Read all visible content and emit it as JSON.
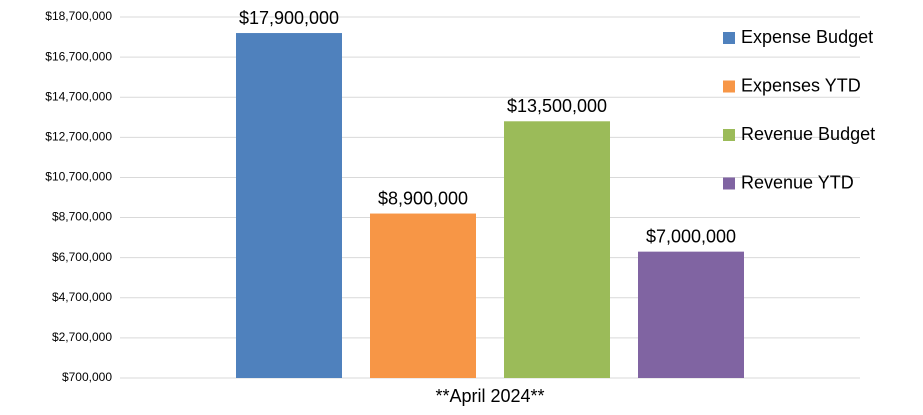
{
  "chart_data": {
    "type": "bar",
    "categories": [
      "**April 2024**"
    ],
    "series": [
      {
        "name": "Expense Budget",
        "color": "#4f81bd",
        "values": [
          17900000
        ],
        "value_labels": [
          "$17,900,000"
        ]
      },
      {
        "name": "Expenses YTD",
        "color": "#f79646",
        "values": [
          8900000
        ],
        "value_labels": [
          "$8,900,000"
        ]
      },
      {
        "name": "Revenue Budget",
        "color": "#9bbb59",
        "values": [
          13500000
        ],
        "value_labels": [
          "$13,500,000"
        ]
      },
      {
        "name": "Revenue YTD",
        "color": "#8064a2",
        "values": [
          7000000
        ],
        "value_labels": [
          "$7,000,000"
        ]
      }
    ],
    "ylim": [
      700000,
      18700000
    ],
    "yticks": [
      {
        "value": 700000,
        "label": "$700,000"
      },
      {
        "value": 2700000,
        "label": "$2,700,000"
      },
      {
        "value": 4700000,
        "label": "$4,700,000"
      },
      {
        "value": 6700000,
        "label": "$6,700,000"
      },
      {
        "value": 8700000,
        "label": "$8,700,000"
      },
      {
        "value": 10700000,
        "label": "$10,700,000"
      },
      {
        "value": 12700000,
        "label": "$12,700,000"
      },
      {
        "value": 14700000,
        "label": "$14,700,000"
      },
      {
        "value": 16700000,
        "label": "$16,700,000"
      },
      {
        "value": 18700000,
        "label": "$18,700,000"
      }
    ],
    "grid": true,
    "legend": "right"
  }
}
